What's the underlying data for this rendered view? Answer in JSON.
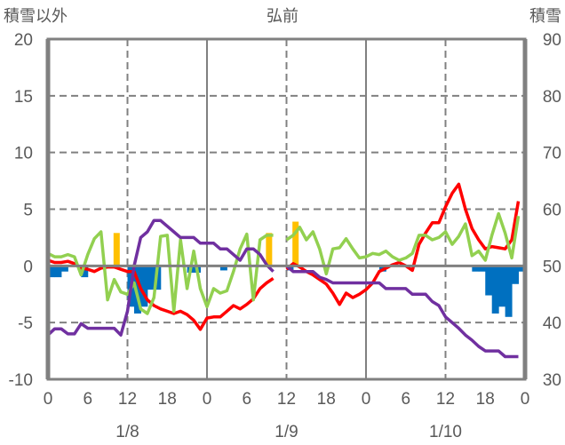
{
  "chart_data": {
    "type": "line",
    "title": "弘前",
    "ylabel_left": "積雪以外",
    "ylabel_right": "積雪",
    "ylim_left": [
      -10,
      20
    ],
    "ylim_right": [
      30,
      90
    ],
    "yticks_left": [
      "20",
      "15",
      "10",
      "5",
      "0",
      "-5",
      "-10"
    ],
    "yticks_right": [
      "90",
      "80",
      "70",
      "60",
      "50",
      "40",
      "30"
    ],
    "xticks": [
      "0",
      "6",
      "12",
      "18",
      "0",
      "6",
      "12",
      "18",
      "0",
      "6",
      "12",
      "18",
      "0"
    ],
    "date_labels": [
      "1/8",
      "1/9",
      "1/10"
    ],
    "x_unit": "hour (72 hours)",
    "grid": true,
    "series": [
      {
        "name": "red-series",
        "axis": "left",
        "kind": "line",
        "color": "#ff0000",
        "values": [
          0.5,
          0.3,
          0.3,
          0.4,
          0.2,
          -0.2,
          -0.3,
          -0.5,
          -0.2,
          -0.1,
          -0.1,
          -0.3,
          -0.5,
          -0.5,
          -2,
          -3,
          -3.5,
          -3.8,
          -4,
          -4.2,
          -4,
          -4.3,
          -4.8,
          -5.6,
          -4.6,
          -4.5,
          -4.5,
          -4,
          -3.5,
          -3.8,
          -3.4,
          -2.9,
          -2,
          -1.5,
          -1.1,
          null,
          -0.3,
          0.2,
          -0.1,
          -0.5,
          -0.8,
          -1.2,
          -1.6,
          -2.4,
          -3.4,
          -2.4,
          -2.8,
          -2.5,
          -2.1,
          -1.5,
          -0.5,
          -0.2,
          0.1,
          0.3,
          0,
          -0.4,
          1.9,
          2.9,
          3.8,
          3.8,
          5.2,
          6.4,
          7.2,
          5,
          3.3,
          2.3,
          1.5,
          1.7,
          1.6,
          1.5,
          2.3,
          5.7
        ]
      },
      {
        "name": "green-series",
        "axis": "left",
        "kind": "line",
        "color": "#92d050",
        "values": [
          1.1,
          0.8,
          0.8,
          1.0,
          0.8,
          -0.8,
          1,
          2.4,
          3,
          -3,
          -1.2,
          -2.3,
          -2.5,
          -1.5,
          -3.8,
          -4.2,
          -2.8,
          2.6,
          2.7,
          -4,
          2.3,
          -2,
          1.3,
          -2,
          -3.6,
          -2,
          -2.4,
          -2.2,
          -0.5,
          1.5,
          2.8,
          -3,
          2.3,
          2.7,
          2.7,
          null,
          2.3,
          2.7,
          3.4,
          2.3,
          3,
          1.5,
          -0.7,
          1.5,
          1.6,
          2.4,
          1.5,
          0.7,
          0.8,
          1.1,
          1,
          1.3,
          0.8,
          0.5,
          0.7,
          1.1,
          2.7,
          2.7,
          2.3,
          2.5,
          3,
          1.9,
          2.6,
          3.7,
          0.9,
          1.3,
          0.5,
          2.7,
          4.6,
          2.9,
          0.7,
          4.4
        ]
      },
      {
        "name": "purple-series",
        "axis": "right",
        "kind": "line",
        "color": "#7030a0",
        "values": [
          37.8,
          38.9,
          38.9,
          38,
          38,
          39.8,
          39,
          39,
          39,
          39,
          39,
          37.8,
          42,
          50,
          55,
          56,
          58,
          58,
          57,
          56,
          55,
          55,
          55,
          54,
          54,
          54,
          53,
          53,
          52,
          51,
          53,
          53,
          52,
          50.2,
          49,
          null,
          50,
          49,
          49,
          49,
          49,
          48,
          47.6,
          47,
          47,
          47,
          47,
          47,
          47,
          47,
          47,
          46,
          46,
          46,
          46,
          45,
          45,
          45,
          43.7,
          43,
          41,
          40,
          39,
          37.8,
          36.9,
          35.8,
          35,
          35,
          35,
          34,
          34,
          34
        ]
      },
      {
        "name": "blue-bars",
        "axis": "left",
        "kind": "bar",
        "color": "#0070c0",
        "values": [
          -1,
          -1,
          -0.5,
          0,
          0,
          -1,
          0,
          0,
          0,
          0,
          0,
          0,
          -3.6,
          -4.2,
          -3.6,
          -2.1,
          -2.1,
          0,
          0,
          0,
          0,
          -0.6,
          -0.6,
          0,
          0,
          0,
          -0.4,
          0,
          0,
          0,
          0,
          0,
          0,
          0,
          0,
          0,
          -0.4,
          0,
          0,
          0,
          0,
          0,
          0,
          0,
          0,
          0,
          0,
          0,
          0,
          0,
          -0.5,
          0,
          0,
          0,
          0,
          0,
          0,
          0,
          0,
          0,
          0,
          0,
          0,
          0,
          -0.5,
          -0.5,
          -2.6,
          -4.2,
          -3.6,
          -4.5,
          -1.6,
          -0.5
        ]
      },
      {
        "name": "orange-bars",
        "axis": "left",
        "kind": "bar",
        "color": "#ffc000",
        "values": [
          0,
          0,
          0,
          0,
          0,
          0,
          0,
          0,
          0,
          0,
          2.9,
          0,
          0,
          0,
          0,
          0,
          0,
          0,
          0,
          0,
          0,
          0,
          0,
          0,
          0,
          0,
          0,
          0,
          0,
          0,
          0,
          0,
          0,
          2.9,
          0,
          0,
          0,
          3.9,
          0,
          0,
          0,
          0,
          0,
          0,
          0,
          0,
          0,
          0,
          0,
          0,
          0,
          0,
          0,
          0,
          0,
          0,
          0,
          0,
          0,
          0,
          0,
          0,
          0,
          0,
          0,
          0,
          0,
          0,
          0,
          0,
          0,
          0
        ]
      }
    ]
  }
}
